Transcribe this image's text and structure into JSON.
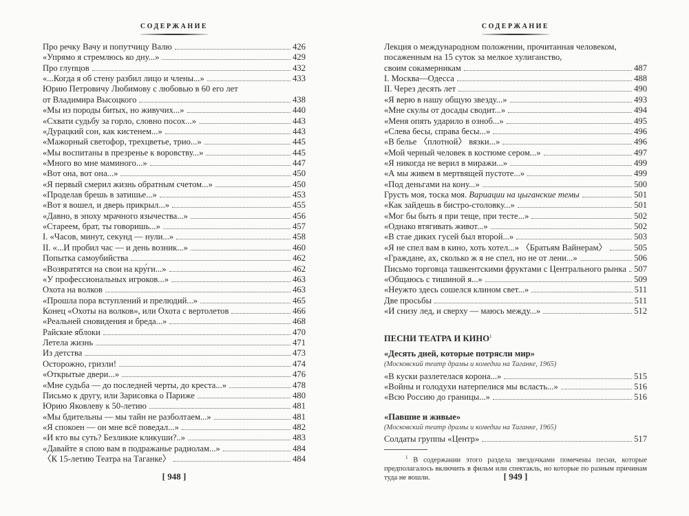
{
  "left_page": {
    "running_head": "СОДЕРЖАНИЕ",
    "entries": [
      {
        "title": "Про речку Вачу и попутчицу Валю",
        "page": "426"
      },
      {
        "title": "«Упрямо я стремлюсь ко дну...»",
        "page": "429"
      },
      {
        "title": "Про глупцов",
        "page": "432"
      },
      {
        "title": "«...Когда я об стену разбил лицо и члены...»",
        "page": "433"
      },
      {
        "pre": "Юрию Петровичу Любимову с любовью в 60 его лет",
        "title": "от Владимира Высоцкого",
        "page": "438"
      },
      {
        "title": "«Мы из породы битых, но живучих...»",
        "page": "440"
      },
      {
        "title": "«Схвати судьбу за горло, словно посох...»",
        "page": "443"
      },
      {
        "title": "«Дурацкий сон, как кистенем...»",
        "page": "443"
      },
      {
        "title": "«Мажорный светофор, трехцветье, трио...»",
        "page": "445"
      },
      {
        "title": "«Мы воспитаны в презренье к воровству...»",
        "page": "445"
      },
      {
        "title": "«Много во мне маминого...»",
        "page": "447"
      },
      {
        "title": "«Вот она, вот она...»",
        "page": "450"
      },
      {
        "title": "«Я первый смерил жизнь обратным счетом...»",
        "page": "450"
      },
      {
        "title": "«Проделав брешь в затишье...»",
        "page": "453"
      },
      {
        "title": "«Вот я вошел, и дверь прикрыл...»",
        "page": "455"
      },
      {
        "title": "«Давно, в эпоху мрачного язычества...»",
        "page": "456"
      },
      {
        "title": "«Стареем, брат, ты говоришь...»",
        "page": "457"
      },
      {
        "title": "I. «Часов, минут, секунд — нули...»",
        "page": "458"
      },
      {
        "title": "II. «...И пробил час — и день возник...»",
        "page": "460"
      },
      {
        "title": "Попытка самоубийства",
        "page": "462"
      },
      {
        "title": "«Возвратятся на свои на кру́ги...»",
        "page": "462"
      },
      {
        "title": "«У профессиональных игроков...»",
        "page": "463"
      },
      {
        "title": "Охота на волков",
        "page": "463"
      },
      {
        "title": "«Прошла пора вступлений и прелюдий...»",
        "page": "465"
      },
      {
        "title": "Конец «Охоты на волков», или Охота с вертолетов",
        "page": "466"
      },
      {
        "title": "«Реальней сновидения и бреда...»",
        "page": "468"
      },
      {
        "title": "Райские яблоки",
        "page": "470"
      },
      {
        "title": "Летела жизнь",
        "page": "471"
      },
      {
        "title": "Из детства",
        "page": "473"
      },
      {
        "title": "Осторожно, гризли!",
        "page": "474"
      },
      {
        "title": "«Открытые двери...»",
        "page": "476"
      },
      {
        "title": "«Мне судьба — до последней черты, до креста...»",
        "page": "478"
      },
      {
        "title": "Письмо к другу, или Зарисовка о Париже",
        "page": "480"
      },
      {
        "title": "Юрию Яковлеву к 50-летию",
        "page": "481"
      },
      {
        "title": "«Мы бдительны — мы тайн не разболтаем...»",
        "page": "481"
      },
      {
        "title": "«Я спокоен — он мне всё поведал...»",
        "page": "482"
      },
      {
        "title": "«И кто вы суть? Безликие кликуши?..»",
        "page": "483"
      },
      {
        "title": "«Давайте я спою вам в подражанье радиолам...»",
        "page": "484"
      },
      {
        "title": "〈К 15-летию Театра на Таганке〉",
        "page": "484"
      }
    ],
    "folio": "[ 948 ]"
  },
  "right_page": {
    "running_head": "СОДЕРЖАНИЕ",
    "entries": [
      {
        "pre": "Лекция о международном положении, прочитанная человеком,",
        "pre2": "посаженным на 15 суток за мелкое хулиганство,",
        "title": "своим сокамерникам",
        "page": "487"
      },
      {
        "title": "I. Москва—Одесса",
        "page": "488"
      },
      {
        "title": "II. Через десять лет",
        "page": "490"
      },
      {
        "title": "«Я верю в нашу общую звезду...»",
        "page": "493"
      },
      {
        "title": "«Мне скулы от досады сводит...»",
        "page": "494"
      },
      {
        "title": "«Меня опять ударило в озноб...»",
        "page": "495"
      },
      {
        "title": "«Слева бесы, справа бесы...»",
        "page": "496"
      },
      {
        "title": "«В белье 〈плотной〉 вязки...»",
        "page": "496"
      },
      {
        "title": "«Мой черный человек в костюме сером...»",
        "page": "497"
      },
      {
        "title": "«Я никогда не верил в миражи...»",
        "page": "499"
      },
      {
        "title": "«А мы живем в мертвящей пустоте...»",
        "page": "499"
      },
      {
        "title": "«Под деньгами на кону...»",
        "page": "500"
      },
      {
        "title": "Грусть моя, тоска моя. ",
        "title_italic": "Вариации на цыганские темы",
        "page": "501"
      },
      {
        "title": "«Как зайдешь в бистро-столовку...»",
        "page": "501"
      },
      {
        "title": "«Мог бы быть я при теще, при тесте...»",
        "page": "502"
      },
      {
        "title": "«Однако втягивать живот...»",
        "page": "502"
      },
      {
        "title": "«В стае диких гусей был второй...»",
        "page": "503"
      },
      {
        "title": "«Я не спел вам в кино, хоть хотел...» 〈Братьям Вайнерам〉",
        "page": "505"
      },
      {
        "title": "«Граждане, ах, сколько ж я не спел, но не от лени...»",
        "page": "506"
      },
      {
        "title": "Письмо торговца ташкентскими фруктами с Центрального рынка",
        "page": "507"
      },
      {
        "title": "«Общаюсь с тишиной я...»",
        "page": "509"
      },
      {
        "title": "«Неужто здесь сошелся клином свет...»",
        "page": "511"
      },
      {
        "title": "Две просьбы",
        "page": "511"
      },
      {
        "title": "«И снизу лед, и сверху — маюсь между...»",
        "page": "512"
      }
    ],
    "section": {
      "title": "ПЕСНИ ТЕАТРА И КИНО",
      "footnote_mark": "1"
    },
    "groups": [
      {
        "title": "«Десять дней, которые потрясли мир»",
        "note": "(Московский театр драмы и комедии на Таганке, 1965)",
        "entries": [
          {
            "title": "«В куски разлетелася корона...»",
            "page": "515"
          },
          {
            "title": "«Войны и голодухи натерпелися мы всласть...»",
            "page": "516"
          },
          {
            "title": "«Всю Россию до границы...»",
            "page": "516"
          }
        ]
      },
      {
        "title": "«Павшие и живые»",
        "note": "(Московский театр драмы и комедии на Таганке, 1965)",
        "entries": [
          {
            "title": "Солдаты группы «Центр»",
            "page": "517"
          }
        ]
      }
    ],
    "footnote": {
      "mark": "1",
      "text": "В содержании этого раздела звездочками помечены песни, которые предполагалось включить в фильм или спектакль, но которые по разным причинам туда не вошли."
    },
    "folio": "[ 949 ]"
  }
}
